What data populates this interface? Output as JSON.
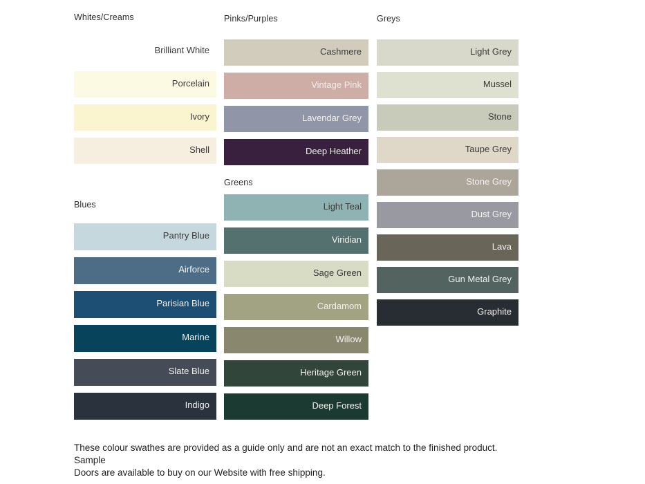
{
  "page": {
    "background": "#FFFFFF",
    "footer": "These colour swathes are provided as a guide only and are not an exact match to the finished product.  Sample\nDoors are available to buy on our Website with free shipping."
  },
  "text_colors": {
    "heading": "#2E2E2E",
    "dark_label": "#3A3A3A",
    "light_label": "#F3F2EF",
    "footer": "#1F1F1F"
  },
  "sections": [
    {
      "id": "whites-creams",
      "heading": "Whites/Creams",
      "swatches": [
        {
          "label": "Brilliant White",
          "color": "#FFFFFF",
          "text": "#3A3A3A"
        },
        {
          "label": "Porcelain",
          "color": "#FDFAE3",
          "text": "#3A3A3A"
        },
        {
          "label": "Ivory",
          "color": "#FAF5CE",
          "text": "#3A3A3A"
        },
        {
          "label": "Shell",
          "color": "#F6EEDE",
          "text": "#3A3A3A"
        }
      ]
    },
    {
      "id": "blues",
      "heading": "Blues",
      "swatches": [
        {
          "label": "Pantry Blue",
          "color": "#C4D8DE",
          "text": "#3A3A3A"
        },
        {
          "label": "Airforce",
          "color": "#4D6D87",
          "text": "#F3F2EF"
        },
        {
          "label": "Parisian Blue",
          "color": "#1D4E74",
          "text": "#F3F2EF"
        },
        {
          "label": "Marine",
          "color": "#07435A",
          "text": "#F3F2EF"
        },
        {
          "label": "Slate Blue",
          "color": "#454C58",
          "text": "#F3F2EF"
        },
        {
          "label": "Indigo",
          "color": "#2A323D",
          "text": "#F3F2EF"
        }
      ]
    },
    {
      "id": "pinks-purples",
      "heading": "Pinks/Purples",
      "swatches": [
        {
          "label": "Cashmere",
          "color": "#D1CCBC",
          "text": "#3A3A3A"
        },
        {
          "label": "Vintage Pink",
          "color": "#CFADA7",
          "text": "#F3EDEA"
        },
        {
          "label": "Lavendar Grey",
          "color": "#9095A7",
          "text": "#F3F2EF"
        },
        {
          "label": "Deep Heather",
          "color": "#39203F",
          "text": "#F3F2EF"
        }
      ]
    },
    {
      "id": "greens",
      "heading": "Greens",
      "swatches": [
        {
          "label": "Light Teal",
          "color": "#8FB2B3",
          "text": "#3A3A3A"
        },
        {
          "label": "Viridian",
          "color": "#547170",
          "text": "#F3F2EF"
        },
        {
          "label": "Sage Green",
          "color": "#D8DCC5",
          "text": "#3A3A3A"
        },
        {
          "label": "Cardamom",
          "color": "#A1A383",
          "text": "#F3F2EF"
        },
        {
          "label": "Willow",
          "color": "#89876E",
          "text": "#F3F2EF"
        },
        {
          "label": "Heritage Green",
          "color": "#31453B",
          "text": "#F3F2EF"
        },
        {
          "label": "Deep Forest",
          "color": "#1B3A31",
          "text": "#F3F2EF"
        }
      ]
    },
    {
      "id": "greys",
      "heading": "Greys",
      "swatches": [
        {
          "label": "Light Grey",
          "color": "#D8D8CB",
          "text": "#3A3A3A"
        },
        {
          "label": "Mussel",
          "color": "#DEE1D0",
          "text": "#3A3A3A"
        },
        {
          "label": "Stone",
          "color": "#C8CBBA",
          "text": "#3A3A3A"
        },
        {
          "label": "Taupe Grey",
          "color": "#DFD8C8",
          "text": "#3A3A3A"
        },
        {
          "label": "Stone Grey",
          "color": "#ACA59A",
          "text": "#F3F2EF"
        },
        {
          "label": "Dust Grey",
          "color": "#999AA1",
          "text": "#F3F2EF"
        },
        {
          "label": "Lava",
          "color": "#696659",
          "text": "#F3F2EF"
        },
        {
          "label": "Gun Metal Grey",
          "color": "#536360",
          "text": "#F3F2EF"
        },
        {
          "label": "Graphite",
          "color": "#282C33",
          "text": "#F3F2EF"
        }
      ]
    }
  ]
}
